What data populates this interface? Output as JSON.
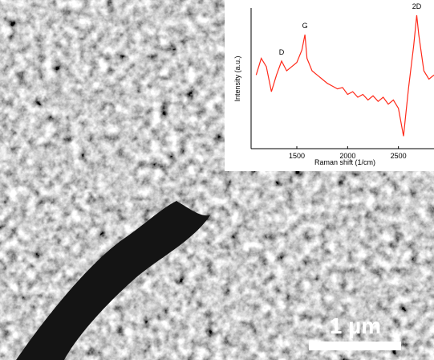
{
  "chart_data": {
    "type": "line",
    "x_label": "Raman shift (1/cm)",
    "y_label": "Intensity (a.u.)",
    "annotations": [
      "D",
      "G",
      "2D"
    ],
    "x": [
      1100,
      1150,
      1200,
      1250,
      1300,
      1350,
      1400,
      1450,
      1500,
      1550,
      1580,
      1600,
      1650,
      1700,
      1750,
      1800,
      1850,
      1900,
      1950,
      2000,
      2050,
      2100,
      2150,
      2200,
      2250,
      2300,
      2350,
      2400,
      2450,
      2500,
      2550,
      2600,
      2650,
      2680,
      2700,
      2750,
      2800,
      2850
    ],
    "values": [
      53,
      65,
      59,
      41,
      53,
      63,
      56,
      59,
      62,
      71,
      82,
      65,
      56,
      53,
      50,
      47,
      45,
      43,
      44,
      39,
      41,
      37,
      39,
      35,
      38,
      34,
      37,
      32,
      35,
      29,
      9,
      44,
      74,
      96,
      82,
      56,
      50,
      53
    ],
    "color": "#ff2a1a",
    "xlim": [
      1050,
      2850
    ],
    "ylim": [
      0,
      100
    ],
    "xticks": [
      1500,
      2000,
      2500
    ]
  },
  "image": {
    "scale_bar": "1 µm"
  }
}
